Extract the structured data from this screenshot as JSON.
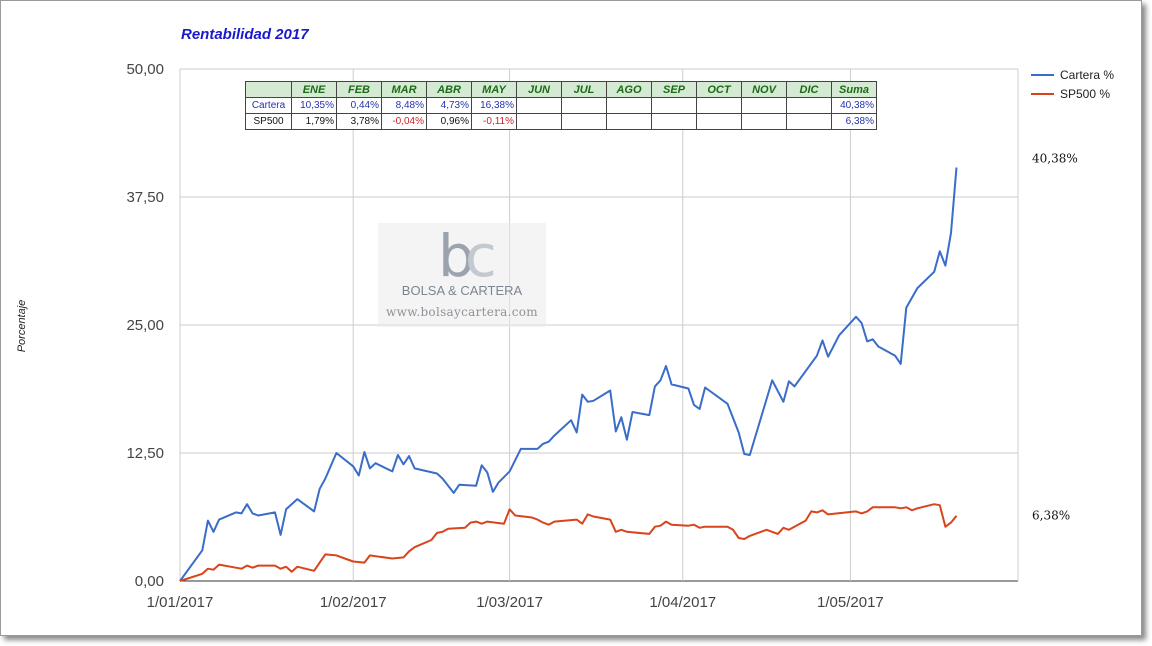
{
  "title": "Rentabilidad 2017",
  "ylabel": "Porcentaje",
  "watermark": {
    "brand": "BOLSA & CARTERA",
    "url": "www.bolsaycartera.com",
    "logo_b": "b",
    "logo_c": "c"
  },
  "table": {
    "header": [
      "",
      "ENE",
      "FEB",
      "MAR",
      "ABR",
      "MAY",
      "JUN",
      "JUL",
      "AGO",
      "SEP",
      "OCT",
      "NOV",
      "DIC",
      "Suma"
    ],
    "rows": [
      {
        "label": "Cartera",
        "cells": [
          "10,35%",
          "0,44%",
          "8,48%",
          "4,73%",
          "16,38%",
          "",
          "",
          "",
          "",
          "",
          "",
          "",
          "40,38%"
        ]
      },
      {
        "label": "SP500",
        "cells": [
          "1,79%",
          "3,78%",
          "-0,04%",
          "0,96%",
          "-0,11%",
          "",
          "",
          "",
          "",
          "",
          "",
          "",
          "6,38%"
        ]
      }
    ],
    "colors": {
      "cartera": "#2233aa",
      "negative": "#cc2222",
      "positive": "#111111",
      "header_bg": "#d4ead3",
      "header_text": "#1c6b16"
    }
  },
  "chart_data": {
    "type": "line",
    "title": "Rentabilidad 2017",
    "xlabel": "",
    "ylabel": "Porcentaje",
    "ylim": [
      0,
      50
    ],
    "yticks": [
      "0,00",
      "12,50",
      "25,00",
      "37,50",
      "50,00"
    ],
    "ytick_values": [
      0,
      12.5,
      25,
      37.5,
      50
    ],
    "xlim": [
      "2017-01-01",
      "2017-05-31"
    ],
    "xticks": [
      "1/01/2017",
      "1/02/2017",
      "1/03/2017",
      "1/04/2017",
      "1/05/2017"
    ],
    "xtick_dates": [
      "2017-01-01",
      "2017-02-01",
      "2017-03-01",
      "2017-04-01",
      "2017-05-01"
    ],
    "grid": true,
    "legend_position": "right",
    "end_labels": [
      "40,38%",
      "6,38%"
    ],
    "series": [
      {
        "name": "Cartera %",
        "color": "#3a6cc9",
        "points": [
          [
            "2017-01-01",
            0
          ],
          [
            "2017-01-05",
            3
          ],
          [
            "2017-01-06",
            5.9
          ],
          [
            "2017-01-07",
            4.8
          ],
          [
            "2017-01-08",
            6
          ],
          [
            "2017-01-11",
            6.7
          ],
          [
            "2017-01-12",
            6.6
          ],
          [
            "2017-01-13",
            7.5
          ],
          [
            "2017-01-14",
            6.6
          ],
          [
            "2017-01-15",
            6.4
          ],
          [
            "2017-01-18",
            6.7
          ],
          [
            "2017-01-19",
            4.5
          ],
          [
            "2017-01-20",
            7
          ],
          [
            "2017-01-22",
            8
          ],
          [
            "2017-01-25",
            6.8
          ],
          [
            "2017-01-26",
            9
          ],
          [
            "2017-01-27",
            10
          ],
          [
            "2017-01-29",
            12.5
          ],
          [
            "2017-02-01",
            11.2
          ],
          [
            "2017-02-02",
            10.3
          ],
          [
            "2017-02-03",
            12.6
          ],
          [
            "2017-02-04",
            11
          ],
          [
            "2017-02-05",
            11.5
          ],
          [
            "2017-02-08",
            10.7
          ],
          [
            "2017-02-09",
            12.3
          ],
          [
            "2017-02-10",
            11.4
          ],
          [
            "2017-02-11",
            12.2
          ],
          [
            "2017-02-12",
            11
          ],
          [
            "2017-02-16",
            10.5
          ],
          [
            "2017-02-17",
            10
          ],
          [
            "2017-02-19",
            8.6
          ],
          [
            "2017-02-20",
            9.4
          ],
          [
            "2017-02-23",
            9.3
          ],
          [
            "2017-02-24",
            11.3
          ],
          [
            "2017-02-25",
            10.6
          ],
          [
            "2017-02-26",
            8.7
          ],
          [
            "2017-02-27",
            9.6
          ],
          [
            "2017-03-01",
            10.7
          ],
          [
            "2017-03-02",
            11.8
          ],
          [
            "2017-03-03",
            12.9
          ],
          [
            "2017-03-06",
            12.9
          ],
          [
            "2017-03-07",
            13.4
          ],
          [
            "2017-03-08",
            13.6
          ],
          [
            "2017-03-09",
            14.2
          ],
          [
            "2017-03-12",
            15.7
          ],
          [
            "2017-03-13",
            14.5
          ],
          [
            "2017-03-14",
            18.2
          ],
          [
            "2017-03-15",
            17.5
          ],
          [
            "2017-03-16",
            17.6
          ],
          [
            "2017-03-19",
            18.6
          ],
          [
            "2017-03-20",
            14.6
          ],
          [
            "2017-03-21",
            16
          ],
          [
            "2017-03-22",
            13.8
          ],
          [
            "2017-03-23",
            16.5
          ],
          [
            "2017-03-26",
            16.2
          ],
          [
            "2017-03-27",
            19
          ],
          [
            "2017-03-28",
            19.6
          ],
          [
            "2017-03-29",
            21
          ],
          [
            "2017-03-30",
            19.2
          ],
          [
            "2017-04-02",
            18.8
          ],
          [
            "2017-04-03",
            17.2
          ],
          [
            "2017-04-04",
            16.8
          ],
          [
            "2017-04-05",
            18.9
          ],
          [
            "2017-04-09",
            17.3
          ],
          [
            "2017-04-11",
            14.5
          ],
          [
            "2017-04-12",
            12.4
          ],
          [
            "2017-04-13",
            12.3
          ],
          [
            "2017-04-17",
            19.6
          ],
          [
            "2017-04-19",
            17.5
          ],
          [
            "2017-04-20",
            19.5
          ],
          [
            "2017-04-21",
            19
          ],
          [
            "2017-04-25",
            22
          ],
          [
            "2017-04-26",
            23.5
          ],
          [
            "2017-04-27",
            21.9
          ],
          [
            "2017-04-29",
            24
          ],
          [
            "2017-05-02",
            25.8
          ],
          [
            "2017-05-03",
            25.2
          ],
          [
            "2017-05-04",
            23.4
          ],
          [
            "2017-05-05",
            23.6
          ],
          [
            "2017-05-06",
            22.9
          ],
          [
            "2017-05-09",
            22
          ],
          [
            "2017-05-10",
            21.2
          ],
          [
            "2017-05-11",
            26.7
          ],
          [
            "2017-05-13",
            28.6
          ],
          [
            "2017-05-16",
            30.2
          ],
          [
            "2017-05-17",
            32.2
          ],
          [
            "2017-05-18",
            30.8
          ],
          [
            "2017-05-19",
            34
          ],
          [
            "2017-05-20",
            40.38
          ]
        ]
      },
      {
        "name": "SP500 %",
        "color": "#d9441b",
        "points": [
          [
            "2017-01-01",
            0
          ],
          [
            "2017-01-05",
            0.7
          ],
          [
            "2017-01-06",
            1.2
          ],
          [
            "2017-01-07",
            1.1
          ],
          [
            "2017-01-08",
            1.6
          ],
          [
            "2017-01-11",
            1.3
          ],
          [
            "2017-01-12",
            1.2
          ],
          [
            "2017-01-13",
            1.5
          ],
          [
            "2017-01-14",
            1.3
          ],
          [
            "2017-01-15",
            1.5
          ],
          [
            "2017-01-18",
            1.5
          ],
          [
            "2017-01-19",
            1.2
          ],
          [
            "2017-01-20",
            1.4
          ],
          [
            "2017-01-21",
            0.9
          ],
          [
            "2017-01-22",
            1.4
          ],
          [
            "2017-01-25",
            1
          ],
          [
            "2017-01-26",
            1.8
          ],
          [
            "2017-01-27",
            2.6
          ],
          [
            "2017-01-29",
            2.5
          ],
          [
            "2017-01-31",
            2.1
          ],
          [
            "2017-02-01",
            1.9
          ],
          [
            "2017-02-03",
            1.8
          ],
          [
            "2017-02-04",
            2.5
          ],
          [
            "2017-02-08",
            2.2
          ],
          [
            "2017-02-10",
            2.3
          ],
          [
            "2017-02-11",
            2.9
          ],
          [
            "2017-02-12",
            3.3
          ],
          [
            "2017-02-15",
            4
          ],
          [
            "2017-02-16",
            4.7
          ],
          [
            "2017-02-17",
            4.8
          ],
          [
            "2017-02-18",
            5.1
          ],
          [
            "2017-02-21",
            5.2
          ],
          [
            "2017-02-22",
            5.7
          ],
          [
            "2017-02-23",
            5.8
          ],
          [
            "2017-02-24",
            5.6
          ],
          [
            "2017-02-25",
            5.8
          ],
          [
            "2017-02-28",
            5.6
          ],
          [
            "2017-03-01",
            7
          ],
          [
            "2017-03-02",
            6.4
          ],
          [
            "2017-03-05",
            6.2
          ],
          [
            "2017-03-06",
            6
          ],
          [
            "2017-03-07",
            5.7
          ],
          [
            "2017-03-08",
            5.5
          ],
          [
            "2017-03-09",
            5.8
          ],
          [
            "2017-03-13",
            6
          ],
          [
            "2017-03-14",
            5.6
          ],
          [
            "2017-03-15",
            6.5
          ],
          [
            "2017-03-16",
            6.3
          ],
          [
            "2017-03-19",
            6
          ],
          [
            "2017-03-20",
            4.8
          ],
          [
            "2017-03-21",
            5
          ],
          [
            "2017-03-22",
            4.8
          ],
          [
            "2017-03-26",
            4.6
          ],
          [
            "2017-03-27",
            5.3
          ],
          [
            "2017-03-28",
            5.4
          ],
          [
            "2017-03-29",
            5.8
          ],
          [
            "2017-03-30",
            5.5
          ],
          [
            "2017-04-02",
            5.4
          ],
          [
            "2017-04-03",
            5.5
          ],
          [
            "2017-04-04",
            5.2
          ],
          [
            "2017-04-05",
            5.3
          ],
          [
            "2017-04-09",
            5.3
          ],
          [
            "2017-04-10",
            5
          ],
          [
            "2017-04-11",
            4.2
          ],
          [
            "2017-04-12",
            4.1
          ],
          [
            "2017-04-13",
            4.4
          ],
          [
            "2017-04-16",
            5
          ],
          [
            "2017-04-18",
            4.6
          ],
          [
            "2017-04-19",
            5.2
          ],
          [
            "2017-04-20",
            5
          ],
          [
            "2017-04-23",
            5.9
          ],
          [
            "2017-04-24",
            6.8
          ],
          [
            "2017-04-25",
            6.7
          ],
          [
            "2017-04-26",
            6.9
          ],
          [
            "2017-04-27",
            6.5
          ],
          [
            "2017-05-02",
            6.8
          ],
          [
            "2017-05-03",
            6.6
          ],
          [
            "2017-05-04",
            6.8
          ],
          [
            "2017-05-05",
            7.2
          ],
          [
            "2017-05-09",
            7.2
          ],
          [
            "2017-05-10",
            7.1
          ],
          [
            "2017-05-11",
            7.2
          ],
          [
            "2017-05-12",
            6.9
          ],
          [
            "2017-05-13",
            7.1
          ],
          [
            "2017-05-16",
            7.5
          ],
          [
            "2017-05-17",
            7.4
          ],
          [
            "2017-05-18",
            5.3
          ],
          [
            "2017-05-19",
            5.7
          ],
          [
            "2017-05-20",
            6.38
          ]
        ]
      }
    ]
  }
}
